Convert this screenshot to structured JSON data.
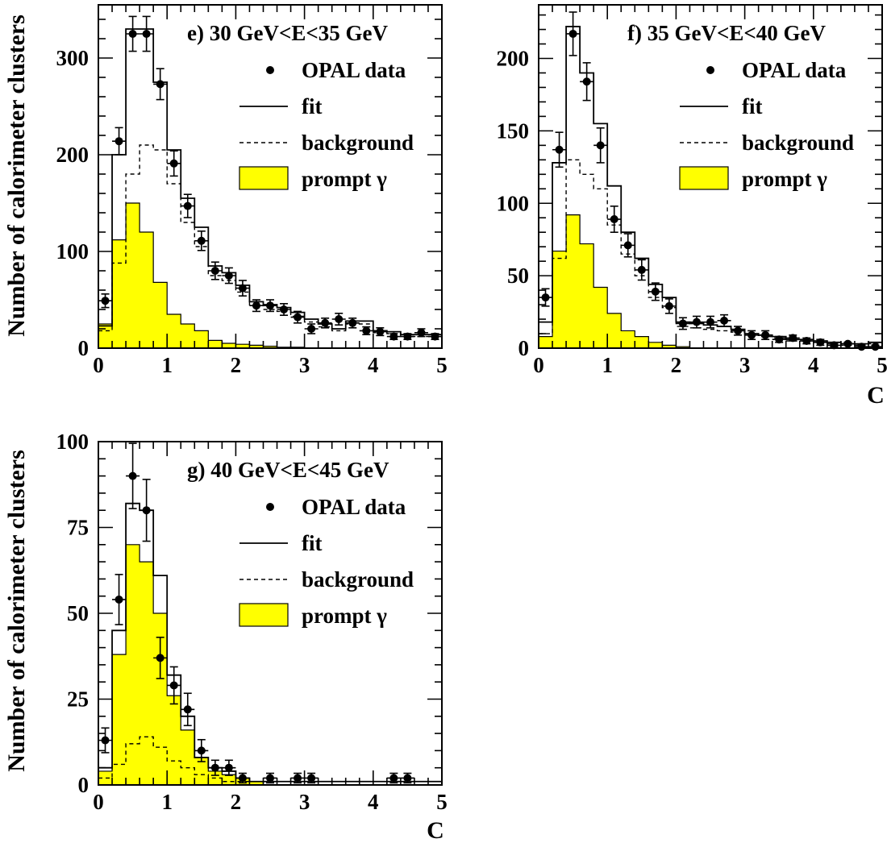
{
  "y_axis_label": "Number of calorimeter clusters",
  "x_axis_label": "C",
  "legend": {
    "data": "OPAL data",
    "fit": "fit",
    "background": "background",
    "prompt": "prompt γ"
  },
  "colors": {
    "prompt_fill": "#ffff00",
    "line": "#000000"
  },
  "chart_data": [
    {
      "type": "histogram",
      "title": "e)  30 GeV<E<35 GeV",
      "xlim": [
        0,
        5
      ],
      "ylim": [
        0,
        355
      ],
      "xticks": [
        0,
        1,
        2,
        3,
        4,
        5
      ],
      "yticks": [
        0,
        100,
        200,
        300
      ],
      "xlabel": "",
      "bin_edges": [
        0,
        0.2,
        0.4,
        0.6,
        0.8,
        1.0,
        1.2,
        1.4,
        1.6,
        1.8,
        2.0,
        2.2,
        2.4,
        2.6,
        2.8,
        3.0,
        3.2,
        3.4,
        3.6,
        3.8,
        4.0,
        4.2,
        4.4,
        4.6,
        4.8,
        5.0
      ],
      "fit": [
        23,
        200,
        330,
        330,
        275,
        205,
        155,
        125,
        85,
        78,
        65,
        48,
        45,
        42,
        37,
        30,
        25,
        20,
        28,
        28,
        18,
        17,
        14,
        14,
        14
      ],
      "background": [
        18,
        88,
        180,
        210,
        205,
        170,
        130,
        105,
        75,
        70,
        58,
        44,
        40,
        38,
        33,
        27,
        22,
        18,
        25,
        25,
        16,
        15,
        12,
        12,
        12
      ],
      "prompt": [
        25,
        112,
        150,
        120,
        68,
        35,
        25,
        18,
        8,
        5,
        4,
        3,
        2,
        1,
        1,
        0,
        0,
        0,
        0,
        0,
        0,
        0,
        0,
        0,
        0
      ],
      "data_x": [
        0.1,
        0.3,
        0.5,
        0.7,
        0.9,
        1.1,
        1.3,
        1.5,
        1.7,
        1.9,
        2.1,
        2.3,
        2.5,
        2.7,
        2.9,
        3.1,
        3.3,
        3.5,
        3.7,
        3.9,
        4.1,
        4.3,
        4.5,
        4.7,
        4.9
      ],
      "data_y": [
        49,
        214,
        325,
        325,
        273,
        191,
        147,
        111,
        80,
        75,
        62,
        44,
        44,
        40,
        32,
        20,
        26,
        30,
        26,
        18,
        17,
        12,
        12,
        16,
        12
      ],
      "data_err": [
        7,
        14,
        18,
        18,
        16,
        13,
        12,
        10,
        9,
        8,
        8,
        6,
        6,
        6,
        6,
        5,
        5,
        6,
        5,
        4,
        4,
        3,
        3,
        4,
        3
      ],
      "legend_placement": "top-right"
    },
    {
      "type": "histogram",
      "title": "f)  35 GeV<E<40 GeV",
      "xlim": [
        0,
        5
      ],
      "ylim": [
        0,
        237
      ],
      "xticks": [
        0,
        1,
        2,
        3,
        4,
        5
      ],
      "yticks": [
        0,
        50,
        100,
        150,
        200
      ],
      "xlabel": "C",
      "bin_edges": [
        0,
        0.2,
        0.4,
        0.6,
        0.8,
        1.0,
        1.2,
        1.4,
        1.6,
        1.8,
        2.0,
        2.2,
        2.4,
        2.6,
        2.8,
        3.0,
        3.2,
        3.4,
        3.6,
        3.8,
        4.0,
        4.2,
        4.4,
        4.6,
        4.8,
        5.0
      ],
      "fit": [
        18,
        128,
        222,
        190,
        155,
        112,
        80,
        62,
        44,
        35,
        18,
        17,
        16,
        15,
        13,
        10,
        9,
        8,
        6,
        6,
        5,
        4,
        3,
        3,
        4
      ],
      "background": [
        10,
        62,
        130,
        120,
        110,
        85,
        65,
        50,
        35,
        28,
        15,
        14,
        13,
        12,
        11,
        9,
        8,
        7,
        5,
        5,
        4,
        3,
        2,
        2,
        3
      ],
      "prompt": [
        8,
        67,
        92,
        72,
        42,
        24,
        12,
        8,
        4,
        2,
        1,
        0,
        0,
        0,
        0,
        0,
        0,
        0,
        0,
        0,
        0,
        0,
        0,
        0,
        0
      ],
      "data_x": [
        0.1,
        0.3,
        0.5,
        0.7,
        0.9,
        1.1,
        1.3,
        1.5,
        1.7,
        1.9,
        2.1,
        2.3,
        2.5,
        2.7,
        2.9,
        3.1,
        3.3,
        3.5,
        3.7,
        3.9,
        4.1,
        4.3,
        4.5,
        4.7,
        4.9
      ],
      "data_y": [
        35,
        137,
        217,
        184,
        140,
        89,
        71,
        54,
        39,
        29,
        17,
        18,
        18,
        19,
        12,
        9,
        9,
        6,
        7,
        5,
        4,
        2,
        3,
        1,
        1
      ],
      "data_err": [
        6,
        12,
        15,
        13,
        12,
        9,
        8,
        7,
        6,
        5,
        4,
        4,
        4,
        4,
        3,
        3,
        3,
        2,
        2,
        2,
        2,
        1,
        1,
        1,
        1
      ],
      "legend_placement": "top-right"
    },
    {
      "type": "histogram",
      "title": "g)  40 GeV<E<45 GeV",
      "xlim": [
        0,
        5
      ],
      "ylim": [
        0,
        100
      ],
      "xticks": [
        0,
        1,
        2,
        3,
        4,
        5
      ],
      "yticks": [
        0,
        25,
        50,
        75,
        100
      ],
      "xlabel": "C",
      "bin_edges": [
        0,
        0.2,
        0.4,
        0.6,
        0.8,
        1.0,
        1.2,
        1.4,
        1.6,
        1.8,
        2.0,
        2.2,
        2.4,
        2.6,
        2.8,
        3.0,
        3.2,
        3.4,
        3.6,
        3.8,
        4.0,
        4.2,
        4.4,
        4.6,
        4.8,
        5.0
      ],
      "fit": [
        5,
        45,
        82,
        80,
        61,
        32,
        20,
        8,
        5,
        4,
        2,
        1,
        1,
        1,
        1,
        1,
        1,
        1,
        1,
        1,
        1,
        1,
        1,
        1,
        1
      ],
      "background": [
        2,
        6,
        12,
        14,
        11,
        7,
        5,
        3,
        2,
        1,
        1,
        1,
        1,
        1,
        1,
        1,
        1,
        1,
        1,
        1,
        1,
        1,
        1,
        1,
        1
      ],
      "prompt": [
        4,
        38,
        70,
        65,
        50,
        26,
        16,
        8,
        4,
        3,
        2,
        1,
        0,
        0,
        0,
        0,
        0,
        0,
        0,
        0,
        0,
        0,
        0,
        0,
        0
      ],
      "data_x": [
        0.1,
        0.3,
        0.5,
        0.7,
        0.9,
        1.1,
        1.3,
        1.5,
        1.7,
        1.9,
        2.1,
        2.5,
        2.9,
        3.1,
        4.3,
        4.5
      ],
      "data_y": [
        13,
        54,
        90,
        80,
        37,
        29,
        22,
        10,
        5,
        5,
        2,
        2,
        2,
        2,
        2,
        2
      ],
      "data_err": [
        3.6,
        7.3,
        9.5,
        9,
        6,
        5.4,
        4.7,
        3.2,
        2.2,
        2.2,
        1.4,
        1.4,
        1.4,
        1.4,
        1.4,
        1.4
      ],
      "legend_placement": "top-right"
    }
  ]
}
